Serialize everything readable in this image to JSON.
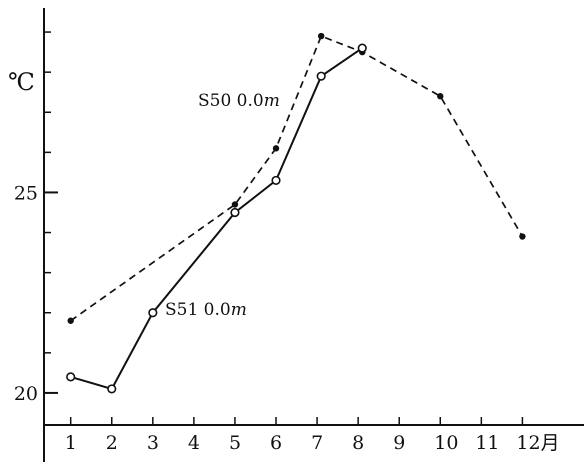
{
  "chart_data": {
    "type": "line",
    "ylabel": "℃",
    "xlabel": "",
    "x_ticks": [
      "1",
      "2",
      "3",
      "4",
      "5",
      "6",
      "7",
      "8",
      "9",
      "10",
      "11",
      "12月"
    ],
    "y_ticks": [
      20,
      25
    ],
    "ylim": [
      19.2,
      29.6
    ],
    "xlim": [
      0.35,
      13.5
    ],
    "grid": false,
    "legend": "inline labels",
    "series": [
      {
        "name": "S50 0.0m",
        "label_parts": {
          "main": "S50 0.0",
          "unit": "m"
        },
        "style": "dashed",
        "marker": "filled-dot",
        "points": [
          [
            1,
            21.8
          ],
          [
            5,
            24.7
          ],
          [
            6,
            26.1
          ],
          [
            7.1,
            28.9
          ],
          [
            8.1,
            28.5
          ],
          [
            10,
            27.4
          ],
          [
            12,
            23.9
          ]
        ]
      },
      {
        "name": "S51 0.0m",
        "label_parts": {
          "main": "S51 0.0",
          "unit": "m"
        },
        "style": "solid",
        "marker": "open-circle",
        "points": [
          [
            1,
            20.4
          ],
          [
            2,
            20.1
          ],
          [
            3,
            22.0
          ],
          [
            5,
            24.5
          ],
          [
            6,
            25.3
          ],
          [
            7.1,
            27.9
          ],
          [
            8.1,
            28.6
          ]
        ]
      }
    ]
  }
}
